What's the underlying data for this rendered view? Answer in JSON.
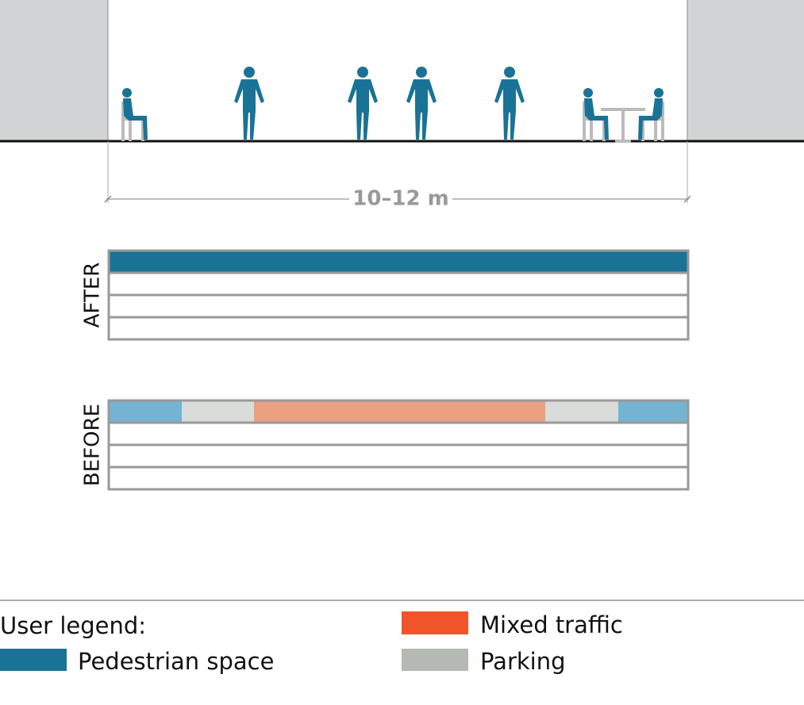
{
  "diagram": {
    "dimension_label": "10–12 m",
    "rows": [
      {
        "label": "AFTER"
      },
      {
        "label": "BEFORE"
      }
    ],
    "legend": {
      "title": "User legend:",
      "items": [
        {
          "label": "Pedestrian space"
        },
        {
          "label": "Mixed traffic"
        },
        {
          "label": "Parking"
        }
      ]
    }
  }
}
